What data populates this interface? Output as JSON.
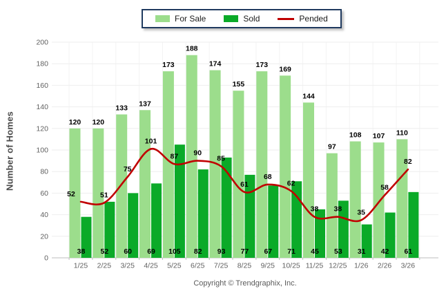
{
  "legend": {
    "items": [
      {
        "label": "For Sale",
        "color": "#9CDD8C",
        "type": "box"
      },
      {
        "label": "Sold",
        "color": "#0BAA28",
        "type": "box"
      },
      {
        "label": "Pended",
        "color": "#C00000",
        "type": "line"
      }
    ]
  },
  "chart_data": {
    "type": "bar+line",
    "categories": [
      "1/25",
      "2/25",
      "3/25",
      "4/25",
      "5/25",
      "6/25",
      "7/25",
      "8/25",
      "9/25",
      "10/25",
      "11/25",
      "12/25",
      "1/26",
      "2/26",
      "3/26"
    ],
    "series": [
      {
        "name": "For Sale",
        "type": "bar",
        "color": "#9CDD8C",
        "values": [
          120,
          120,
          133,
          137,
          173,
          188,
          174,
          155,
          173,
          169,
          144,
          97,
          108,
          107,
          110
        ]
      },
      {
        "name": "Sold",
        "type": "bar",
        "color": "#0BAA28",
        "values": [
          38,
          52,
          60,
          69,
          105,
          82,
          93,
          77,
          67,
          71,
          45,
          53,
          31,
          42,
          61
        ]
      },
      {
        "name": "Pended",
        "type": "line",
        "color": "#C00000",
        "values": [
          52,
          51,
          75,
          101,
          87,
          90,
          85,
          61,
          68,
          62,
          38,
          38,
          35,
          58,
          82
        ]
      }
    ],
    "title": "",
    "xlabel": "",
    "ylabel": "Number of Homes",
    "ylim": [
      0,
      200
    ],
    "ytick_step": 20,
    "grid": true,
    "legend_position": "top-center"
  },
  "colors": {
    "for_sale": "#9CDD8C",
    "sold": "#0BAA28",
    "pended": "#C00000",
    "hgrid": "#EEEEEE",
    "vgrid": "#F3F3F3",
    "axis": "#BDBDBD",
    "tick_text": "#606060",
    "value_text": "#000000",
    "legend_border": "#1F3A5F"
  },
  "footer": {
    "copyright": "Copyright © Trendgraphix, Inc."
  }
}
